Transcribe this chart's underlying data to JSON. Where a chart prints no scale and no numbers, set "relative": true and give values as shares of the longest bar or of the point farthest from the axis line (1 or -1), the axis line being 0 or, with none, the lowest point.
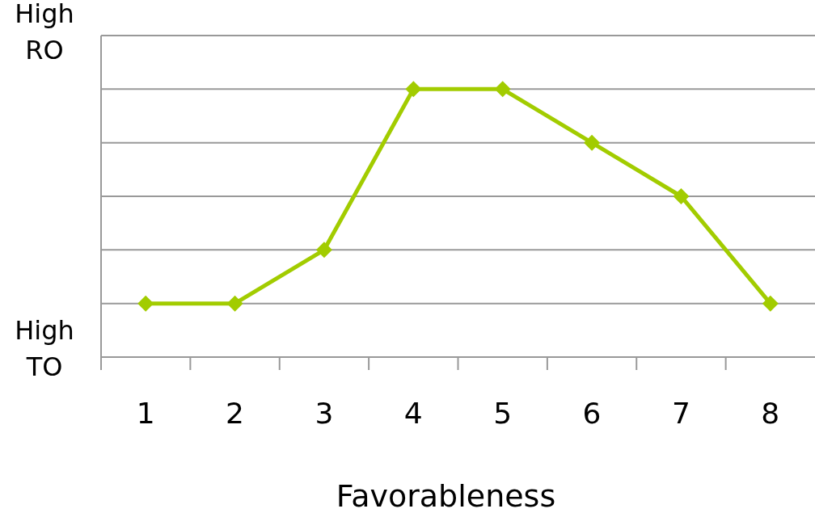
{
  "chart_data": {
    "type": "line",
    "relative": true,
    "xlabel": "Favorableness",
    "categories": [
      "1",
      "2",
      "3",
      "4",
      "5",
      "6",
      "7",
      "8"
    ],
    "series": [
      {
        "color": "#a2cc00",
        "values": [
          0.2,
          0.2,
          0.4,
          1,
          1,
          0.8,
          0.6,
          0.2
        ]
      }
    ],
    "annotations": [
      "High RO",
      "High TO"
    ],
    "grid": true,
    "marker": "diamond",
    "line_style": "solid"
  }
}
